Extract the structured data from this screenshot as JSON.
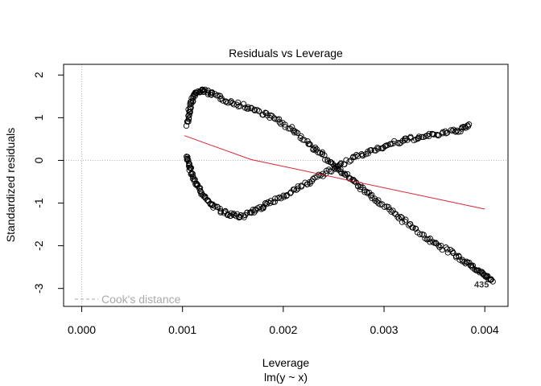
{
  "chart_data": {
    "type": "scatter",
    "title": "Residuals vs Leverage",
    "xlabel": "Leverage",
    "sublabel": "lm(y ~ x)",
    "ylabel": "Standardized residuals",
    "xlim": [
      -0.00018,
      0.00423
    ],
    "ylim": [
      -3.42,
      2.25
    ],
    "x_ticks": [
      0.0,
      0.001,
      0.002,
      0.003,
      0.004
    ],
    "x_tick_labels": [
      "0.000",
      "0.001",
      "0.002",
      "0.003",
      "0.004"
    ],
    "y_ticks": [
      -3,
      -2,
      -1,
      0,
      1,
      2
    ],
    "y_tick_labels": [
      "-3",
      "-2",
      "-1",
      "0",
      "1",
      "2"
    ],
    "reference_lines": {
      "x": 0,
      "y": 0,
      "style": "dotted",
      "color": "#bbbbbb"
    },
    "legend": {
      "label": "Cook's distance",
      "position": "bottom-left",
      "line_style": "dashed",
      "color": "#aaaaaa"
    },
    "point_style": {
      "shape": "open-circle",
      "color": "#000000"
    },
    "curves": [
      {
        "role": "upper-left",
        "x": [
          0.00105,
          0.00107,
          0.00112,
          0.0012,
          0.0013,
          0.0015,
          0.0017,
          0.0019,
          0.0021,
          0.0023,
          0.00245,
          0.0026,
          0.00275,
          0.0029,
          0.0031,
          0.0033,
          0.0035,
          0.0037,
          0.00385,
          0.00398,
          0.00408
        ],
        "y": [
          0.85,
          1.25,
          1.55,
          1.65,
          1.55,
          1.35,
          1.2,
          1.0,
          0.7,
          0.3,
          0.0,
          -0.3,
          -0.6,
          -0.9,
          -1.25,
          -1.6,
          -1.95,
          -2.2,
          -2.45,
          -2.65,
          -2.85
        ],
        "count": 260
      },
      {
        "role": "lower-left",
        "x": [
          0.00105,
          0.00107,
          0.00112,
          0.0012,
          0.0013,
          0.00145,
          0.0016,
          0.00175,
          0.0019,
          0.0021,
          0.0023,
          0.0025,
          0.0027,
          0.0029,
          0.0031,
          0.0033,
          0.0035,
          0.0037,
          0.00385
        ],
        "y": [
          0.1,
          -0.2,
          -0.5,
          -0.8,
          -1.05,
          -1.28,
          -1.3,
          -1.15,
          -0.95,
          -0.7,
          -0.45,
          -0.2,
          0.05,
          0.25,
          0.4,
          0.52,
          0.6,
          0.68,
          0.8
        ],
        "count": 220
      }
    ],
    "smooth_line": {
      "color": "#dd2233",
      "x": [
        0.00102,
        0.00168,
        0.004
      ],
      "y": [
        0.58,
        0.02,
        -1.14
      ]
    },
    "labeled_points": [
      {
        "x": 0.004,
        "y": -2.9,
        "label": "435"
      }
    ]
  }
}
